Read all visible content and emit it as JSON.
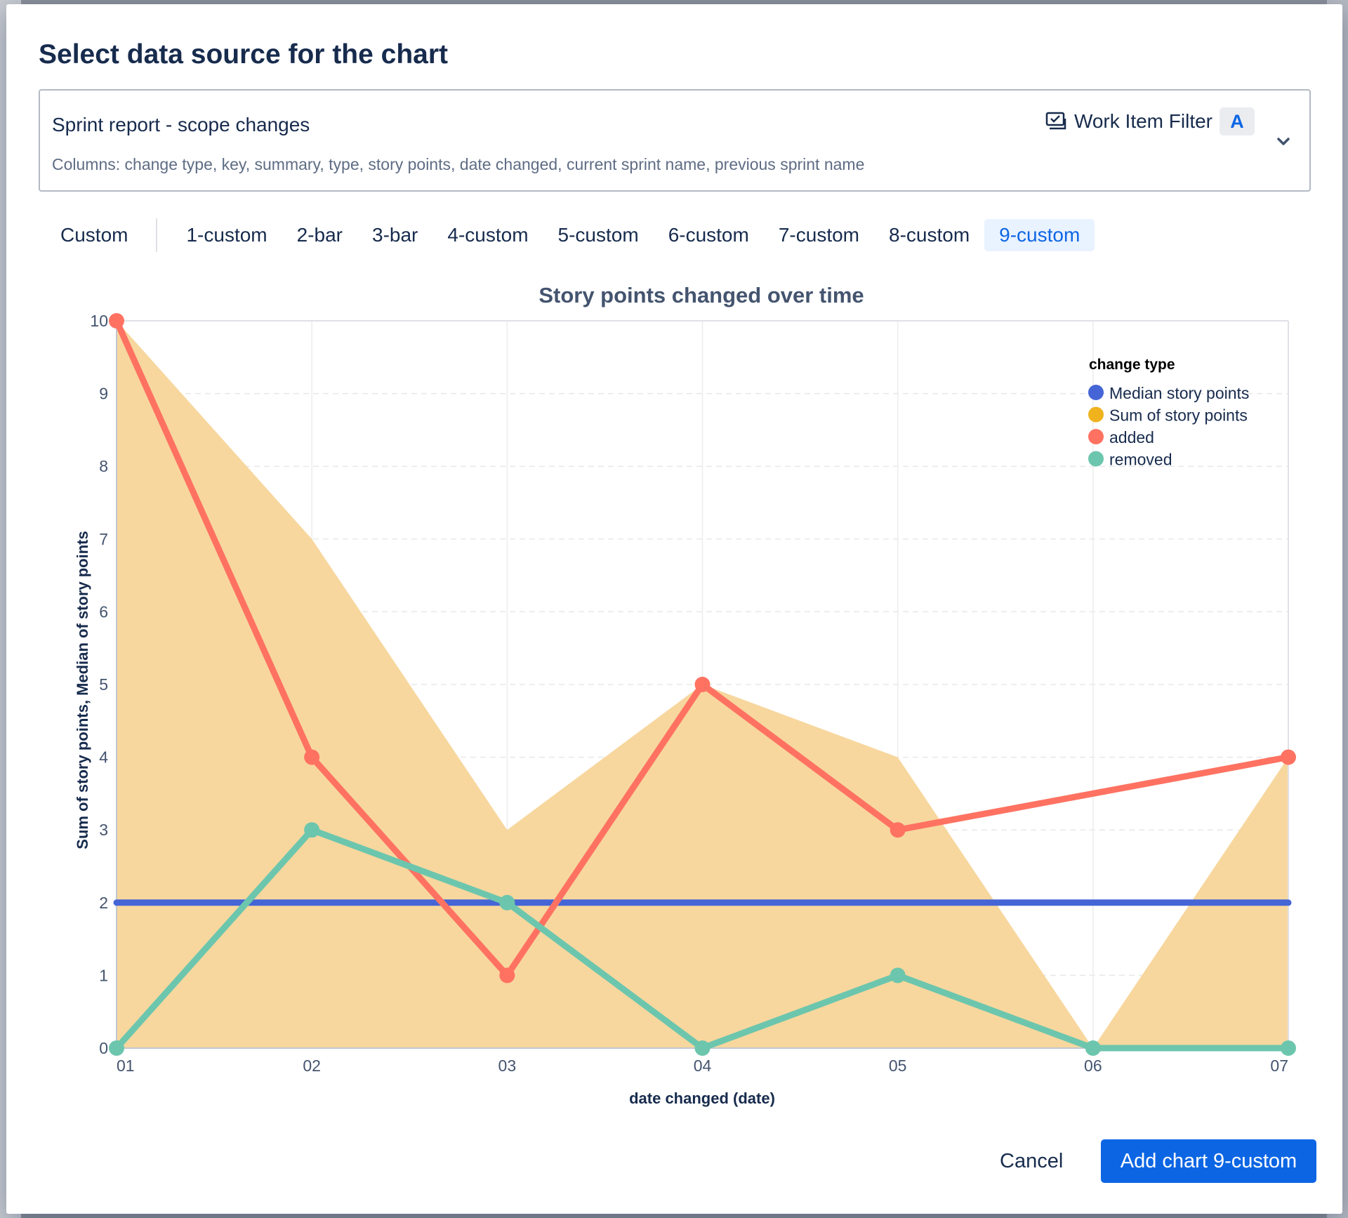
{
  "modal": {
    "title": "Select data source for the chart"
  },
  "source": {
    "name": "Sprint report - scope changes",
    "columns": "Columns: change type, key, summary, type, story points, date changed, current sprint name, previous sprint name",
    "filter_label": "Work Item Filter",
    "filter_badge": "A"
  },
  "tabs": [
    {
      "label": "Custom"
    },
    {
      "label": "1-custom"
    },
    {
      "label": "2-bar"
    },
    {
      "label": "3-bar"
    },
    {
      "label": "4-custom"
    },
    {
      "label": "5-custom"
    },
    {
      "label": "6-custom"
    },
    {
      "label": "7-custom"
    },
    {
      "label": "8-custom"
    },
    {
      "label": "9-custom",
      "active": true
    }
  ],
  "chart_data": {
    "type": "line",
    "title": "Story points changed over time",
    "xlabel": "date changed (date)",
    "ylabel": "Sum of story points, Median of story points",
    "categories": [
      "01",
      "02",
      "03",
      "04",
      "05",
      "06",
      "07"
    ],
    "ylim": [
      0,
      10
    ],
    "yticks": [
      0,
      1,
      2,
      3,
      4,
      5,
      6,
      7,
      8,
      9,
      10
    ],
    "grid": true,
    "legend_title": "change type",
    "legend_position": "top-right",
    "series": [
      {
        "name": "Median story points",
        "kind": "line",
        "color": "#4565d6",
        "values": [
          2,
          2,
          2,
          2,
          2,
          2,
          2
        ]
      },
      {
        "name": "Sum of story points",
        "kind": "area",
        "color": "#f7d79e",
        "legend_color": "#f0b31e",
        "values": [
          10,
          7,
          3,
          5,
          4,
          0,
          4
        ]
      },
      {
        "name": "added",
        "kind": "line",
        "color": "#ff7262",
        "values": [
          10,
          4,
          1,
          5,
          3,
          null,
          4
        ]
      },
      {
        "name": "removed",
        "kind": "line",
        "color": "#6cc6ad",
        "values": [
          0,
          3,
          2,
          0,
          1,
          0,
          0
        ]
      }
    ]
  },
  "footer": {
    "cancel_label": "Cancel",
    "add_label": "Add chart 9-custom"
  }
}
